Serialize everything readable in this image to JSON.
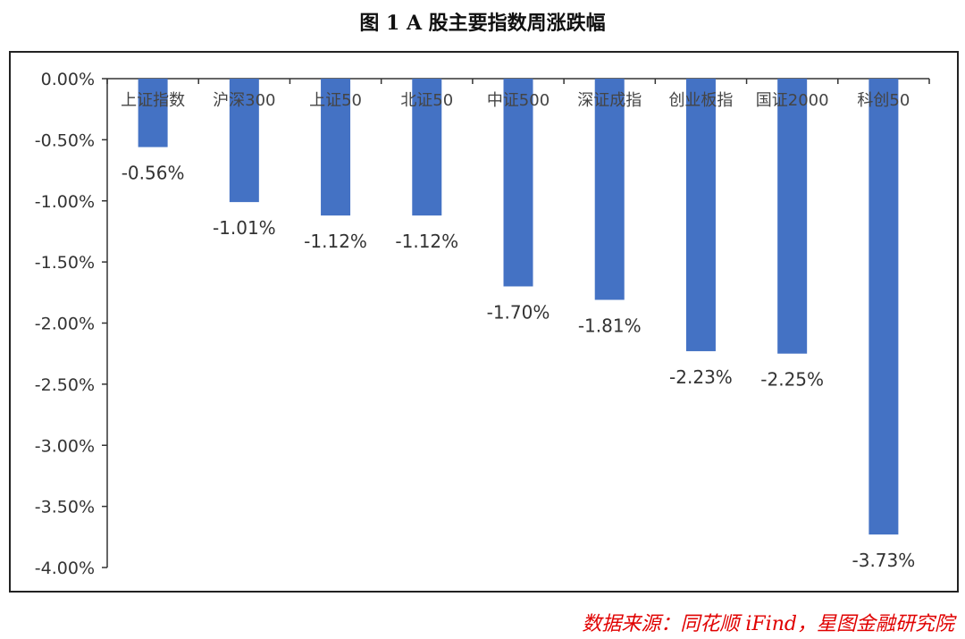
{
  "title": "图 1 A 股主要指数周涨跌幅",
  "source": "数据来源：同花顺 iFind，星图金融研究院",
  "colors": {
    "bar": "#4472C4",
    "axis": "#333333",
    "source": "#e00000"
  },
  "chart_data": {
    "type": "bar",
    "title": "图 1 A 股主要指数周涨跌幅",
    "categories": [
      "上证指数",
      "沪深300",
      "上证50",
      "北证50",
      "中证500",
      "深证成指",
      "创业板指",
      "国证2000",
      "科创50"
    ],
    "values": [
      -0.56,
      -1.01,
      -1.12,
      -1.12,
      -1.7,
      -1.81,
      -2.23,
      -2.25,
      -3.73
    ],
    "data_labels": [
      "-0.56%",
      "-1.01%",
      "-1.12%",
      "-1.12%",
      "-1.70%",
      "-1.81%",
      "-2.23%",
      "-2.25%",
      "-3.73%"
    ],
    "ylim": [
      -4.0,
      0.0
    ],
    "yticks": [
      0.0,
      -0.5,
      -1.0,
      -1.5,
      -2.0,
      -2.5,
      -3.0,
      -3.5,
      -4.0
    ],
    "ytick_labels": [
      "0.00%",
      "-0.50%",
      "-1.00%",
      "-1.50%",
      "-2.00%",
      "-2.50%",
      "-3.00%",
      "-3.50%",
      "-4.00%"
    ],
    "xlabel": "",
    "ylabel": "",
    "grid": false,
    "legend": "none"
  }
}
